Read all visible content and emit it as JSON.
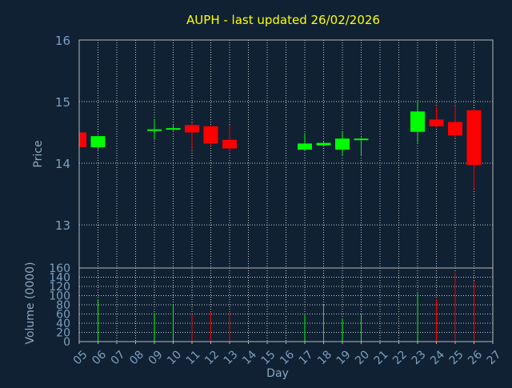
{
  "chart_data": {
    "type": "candlestick",
    "title": "AUPH - last updated 26/02/2026",
    "xlabel": "Day",
    "x_ticks": [
      "05",
      "06",
      "07",
      "08",
      "09",
      "10",
      "11",
      "12",
      "13",
      "14",
      "15",
      "16",
      "17",
      "18",
      "19",
      "20",
      "21",
      "22",
      "23",
      "24",
      "25",
      "26",
      "27"
    ],
    "grid": true,
    "colors": {
      "background": "#0f2133",
      "axis": "#b8b8b8",
      "grid": "#c8c8c8",
      "title": "#ffff00",
      "label": "#8fa8c0",
      "tick_label": "#7f9fbf",
      "up": "#00ff00",
      "down": "#ff0000"
    },
    "price_panel": {
      "ylabel": "Price",
      "ylim": [
        12.3,
        16.0
      ],
      "yticks": [
        "13",
        "14",
        "15",
        "16"
      ],
      "candles": [
        {
          "day": "05",
          "open": 14.5,
          "high": 14.52,
          "low": 14.24,
          "close": 14.26
        },
        {
          "day": "06",
          "open": 14.26,
          "high": 14.45,
          "low": 14.22,
          "close": 14.44
        },
        {
          "day": "09",
          "open": 14.53,
          "high": 14.7,
          "low": 14.38,
          "close": 14.55
        },
        {
          "day": "10",
          "open": 14.55,
          "high": 14.62,
          "low": 14.53,
          "close": 14.57
        },
        {
          "day": "11",
          "open": 14.62,
          "high": 14.66,
          "low": 14.22,
          "close": 14.5
        },
        {
          "day": "12",
          "open": 14.6,
          "high": 14.61,
          "low": 14.3,
          "close": 14.32
        },
        {
          "day": "13",
          "open": 14.38,
          "high": 14.62,
          "low": 14.2,
          "close": 14.24
        },
        {
          "day": "17",
          "open": 14.22,
          "high": 14.49,
          "low": 14.2,
          "close": 14.32
        },
        {
          "day": "18",
          "open": 14.29,
          "high": 14.35,
          "low": 14.27,
          "close": 14.33
        },
        {
          "day": "19",
          "open": 14.22,
          "high": 14.51,
          "low": 14.12,
          "close": 14.4
        },
        {
          "day": "20",
          "open": 14.38,
          "high": 14.42,
          "low": 14.12,
          "close": 14.4
        },
        {
          "day": "23",
          "open": 14.51,
          "high": 15.0,
          "low": 14.33,
          "close": 14.84
        },
        {
          "day": "24",
          "open": 14.71,
          "high": 14.92,
          "low": 14.58,
          "close": 14.6
        },
        {
          "day": "25",
          "open": 14.67,
          "high": 14.94,
          "low": 14.4,
          "close": 14.45
        },
        {
          "day": "26",
          "open": 14.86,
          "high": 14.88,
          "low": 13.58,
          "close": 13.97
        }
      ]
    },
    "volume_panel": {
      "ylabel": "Volume (0000)",
      "ylim": [
        0,
        160
      ],
      "yticks": [
        "0",
        "20",
        "40",
        "60",
        "80",
        "100",
        "120",
        "140",
        "160"
      ],
      "bars": [
        {
          "day": "06",
          "value": 92,
          "direction": "up"
        },
        {
          "day": "09",
          "value": 62,
          "direction": "up"
        },
        {
          "day": "10",
          "value": 80,
          "direction": "up"
        },
        {
          "day": "11",
          "value": 60,
          "direction": "down"
        },
        {
          "day": "12",
          "value": 65,
          "direction": "down"
        },
        {
          "day": "13",
          "value": 65,
          "direction": "down"
        },
        {
          "day": "17",
          "value": 58,
          "direction": "up"
        },
        {
          "day": "18",
          "value": 80,
          "direction": "up"
        },
        {
          "day": "19",
          "value": 50,
          "direction": "up"
        },
        {
          "day": "20",
          "value": 58,
          "direction": "up"
        },
        {
          "day": "23",
          "value": 105,
          "direction": "up"
        },
        {
          "day": "24",
          "value": 92,
          "direction": "down"
        },
        {
          "day": "25",
          "value": 150,
          "direction": "down"
        },
        {
          "day": "26",
          "value": 132,
          "direction": "down"
        }
      ]
    }
  }
}
